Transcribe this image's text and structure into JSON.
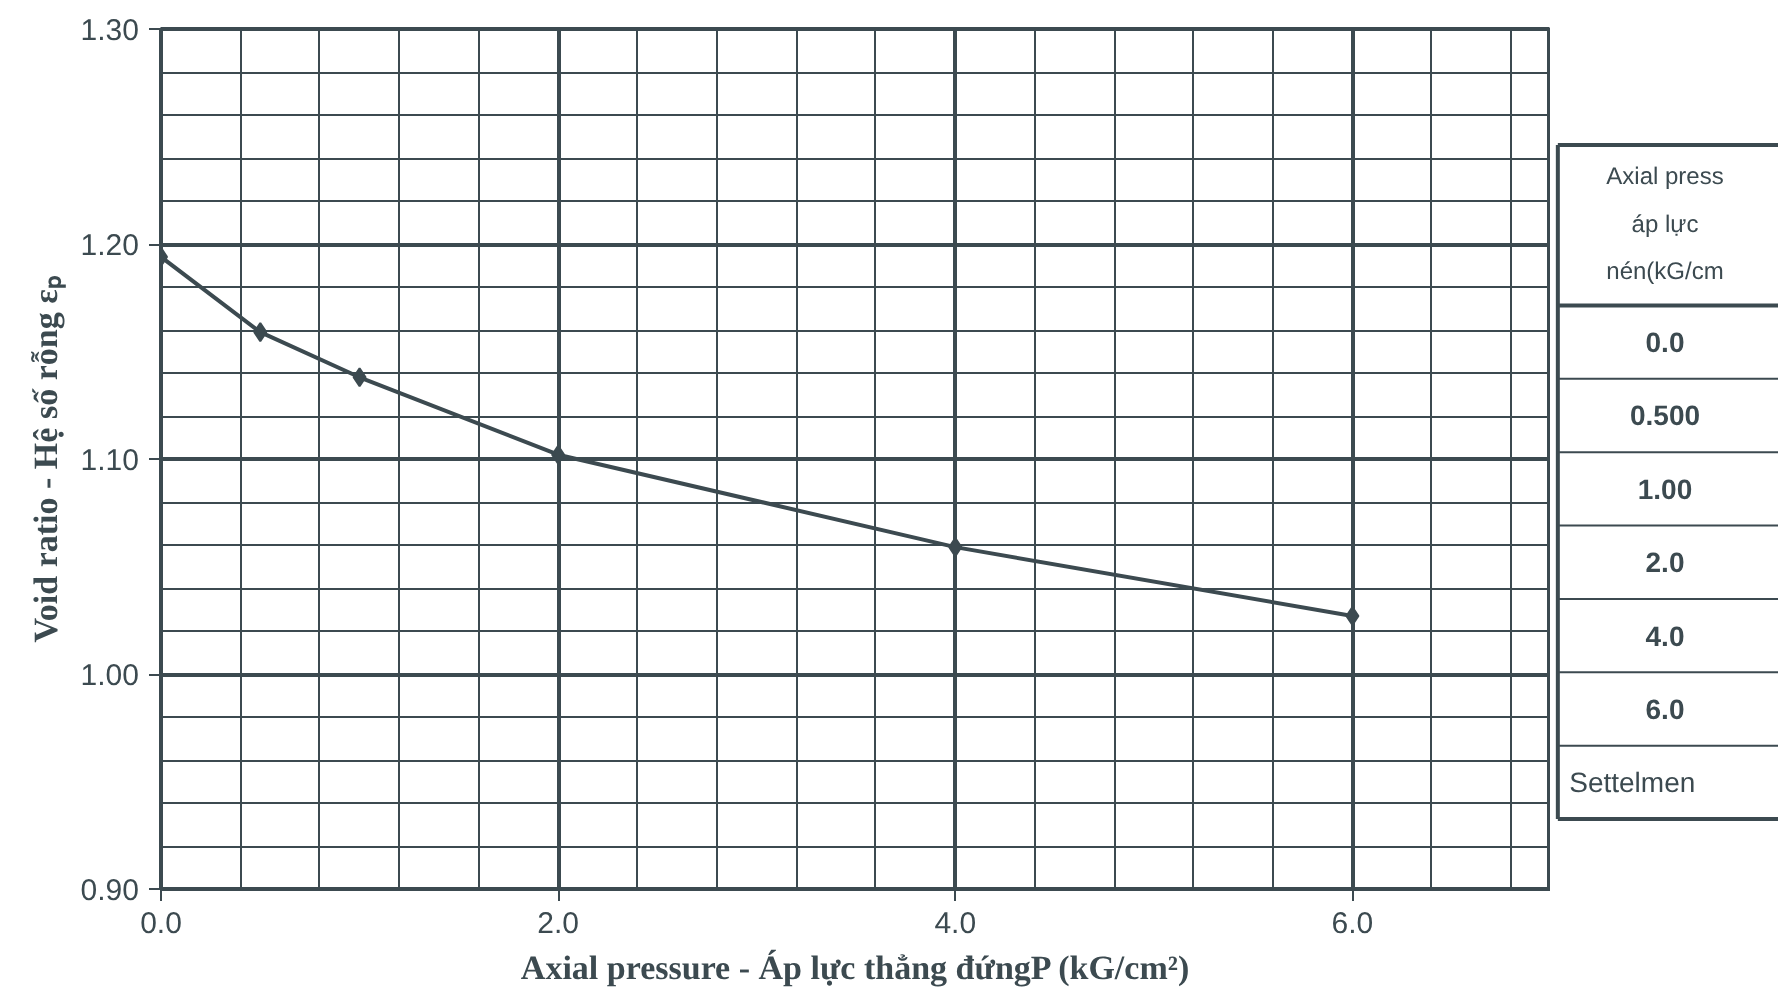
{
  "chart_data": [
    {
      "type": "line",
      "xlabel": "Axial pressure - Áp lực thẳng đứngP (kG/cm²)",
      "ylabel": "Void ratio - Hệ số rỗng εₚ",
      "x": [
        0.0,
        0.5,
        1.0,
        2.0,
        4.0,
        6.0
      ],
      "series": [
        {
          "color": "#3c4a50",
          "values": [
            1.194,
            1.159,
            1.138,
            1.102,
            1.059,
            1.027
          ]
        }
      ],
      "xlim": [
        0,
        7.0
      ],
      "ylim": [
        0.9,
        1.3
      ],
      "xticks": [
        {
          "value": 0,
          "label": "0.0"
        },
        {
          "value": 2,
          "label": "2.0"
        },
        {
          "value": 4,
          "label": "4.0"
        },
        {
          "value": 6,
          "label": "6.0"
        }
      ],
      "yticks": [
        {
          "value": 0.9,
          "label": "0.90"
        },
        {
          "value": 1.0,
          "label": "1.00"
        },
        {
          "value": 1.1,
          "label": "1.10"
        },
        {
          "value": 1.2,
          "label": "1.20"
        },
        {
          "value": 1.3,
          "label": "1.30"
        }
      ],
      "grid": true,
      "marker": "diamond",
      "line_style": "solid"
    },
    {
      "type": "other",
      "annotations": [
        "Axial press",
        "áp lực",
        "nén(kG/cm",
        "0.0",
        "0.500",
        "1.00",
        "2.0",
        "4.0",
        "6.0",
        "Settelmen"
      ]
    }
  ]
}
